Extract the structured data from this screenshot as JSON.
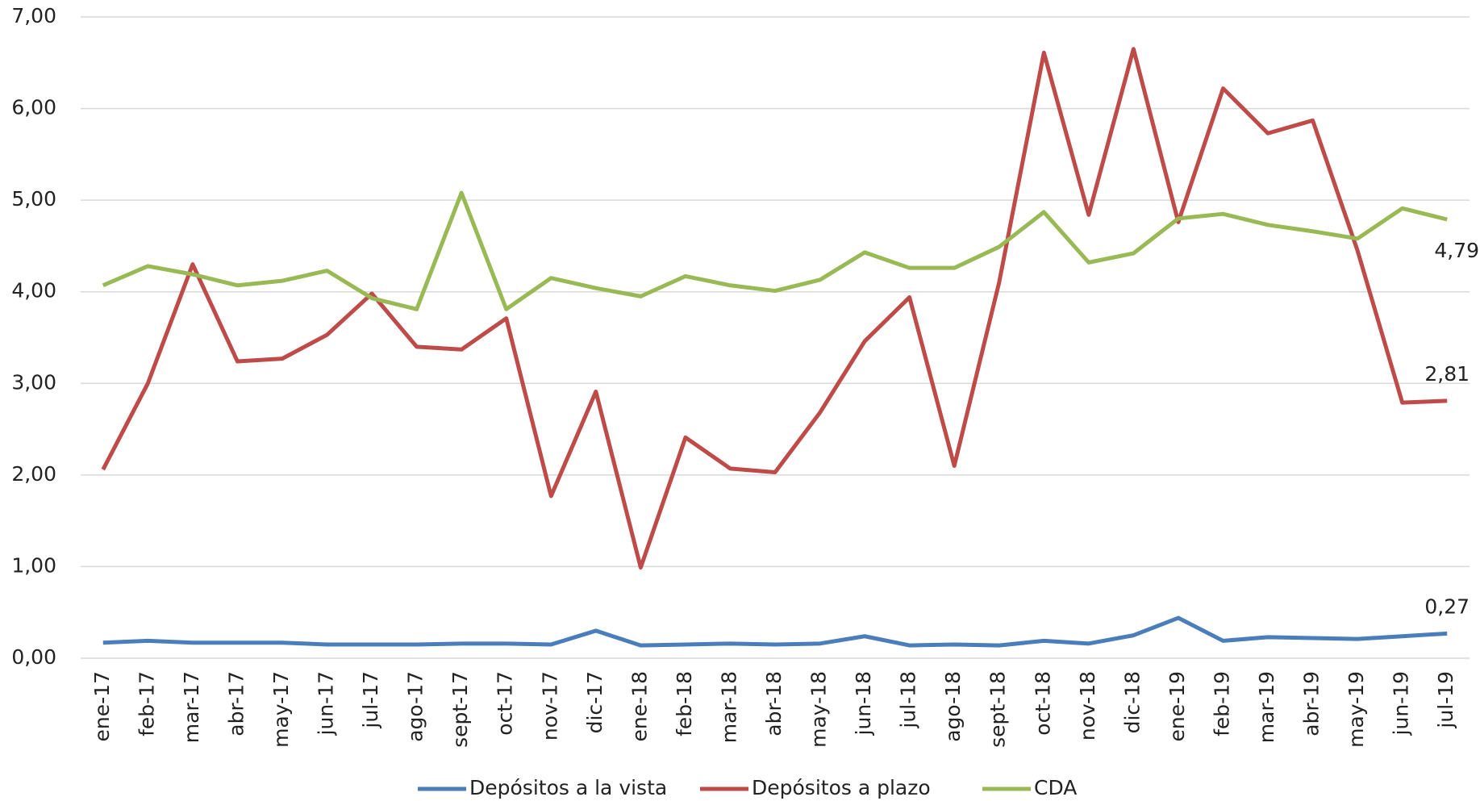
{
  "chart_data": {
    "type": "line",
    "categories": [
      "ene-17",
      "feb-17",
      "mar-17",
      "abr-17",
      "may-17",
      "jun-17",
      "jul-17",
      "ago-17",
      "sept-17",
      "oct-17",
      "nov-17",
      "dic-17",
      "ene-18",
      "feb-18",
      "mar-18",
      "abr-18",
      "may-18",
      "jun-18",
      "jul-18",
      "ago-18",
      "sept-18",
      "oct-18",
      "nov-18",
      "dic-18",
      "ene-19",
      "feb-19",
      "mar-19",
      "abr-19",
      "may-19",
      "jun-19",
      "jul-19"
    ],
    "series": [
      {
        "name": "Depósitos a la vista",
        "color": "#4a7ebb",
        "values": [
          0.17,
          0.19,
          0.17,
          0.17,
          0.17,
          0.15,
          0.15,
          0.15,
          0.16,
          0.16,
          0.15,
          0.3,
          0.14,
          0.15,
          0.16,
          0.15,
          0.16,
          0.24,
          0.14,
          0.15,
          0.14,
          0.19,
          0.16,
          0.25,
          0.44,
          0.19,
          0.23,
          0.22,
          0.21,
          0.24,
          0.27
        ],
        "value_labels": [
          null,
          null,
          null,
          null,
          null,
          null,
          null,
          null,
          null,
          null,
          null,
          null,
          null,
          null,
          null,
          null,
          null,
          null,
          null,
          null,
          null,
          null,
          null,
          null,
          null,
          null,
          null,
          null,
          null,
          null,
          "0,27"
        ]
      },
      {
        "name": "Depósitos a plazo",
        "color": "#be4b48",
        "values": [
          2.06,
          3.0,
          4.3,
          3.24,
          3.27,
          3.53,
          3.98,
          3.4,
          3.37,
          3.71,
          1.77,
          2.91,
          0.99,
          2.41,
          2.07,
          2.03,
          2.68,
          3.46,
          3.94,
          2.1,
          4.1,
          6.61,
          4.84,
          6.65,
          4.76,
          6.22,
          5.73,
          5.87,
          4.45,
          2.79,
          2.81
        ],
        "value_labels": [
          null,
          null,
          null,
          null,
          null,
          null,
          null,
          null,
          null,
          null,
          null,
          null,
          null,
          null,
          null,
          null,
          null,
          null,
          null,
          null,
          null,
          null,
          null,
          null,
          null,
          null,
          null,
          null,
          null,
          null,
          "2,81"
        ]
      },
      {
        "name": "CDA",
        "color": "#98b954",
        "values": [
          4.07,
          4.28,
          4.19,
          4.07,
          4.12,
          4.23,
          3.93,
          3.81,
          5.08,
          3.81,
          4.15,
          4.04,
          3.95,
          4.17,
          4.07,
          4.01,
          4.13,
          4.43,
          4.26,
          4.26,
          4.49,
          4.87,
          4.32,
          4.42,
          4.8,
          4.85,
          4.73,
          4.66,
          4.58,
          4.91,
          4.79
        ],
        "value_labels": [
          null,
          null,
          null,
          null,
          null,
          null,
          null,
          null,
          null,
          null,
          null,
          null,
          null,
          null,
          null,
          null,
          null,
          null,
          null,
          null,
          null,
          null,
          null,
          null,
          null,
          null,
          null,
          null,
          null,
          null,
          "4,79"
        ]
      }
    ],
    "ylim": [
      0,
      7
    ],
    "yticks": [
      {
        "value": 0,
        "label": "0,00"
      },
      {
        "value": 1,
        "label": "1,00"
      },
      {
        "value": 2,
        "label": "2,00"
      },
      {
        "value": 3,
        "label": "3,00"
      },
      {
        "value": 4,
        "label": "4,00"
      },
      {
        "value": 5,
        "label": "5,00"
      },
      {
        "value": 6,
        "label": "6,00"
      },
      {
        "value": 7,
        "label": "7,00"
      }
    ],
    "grid": true,
    "legend": "bottom"
  }
}
